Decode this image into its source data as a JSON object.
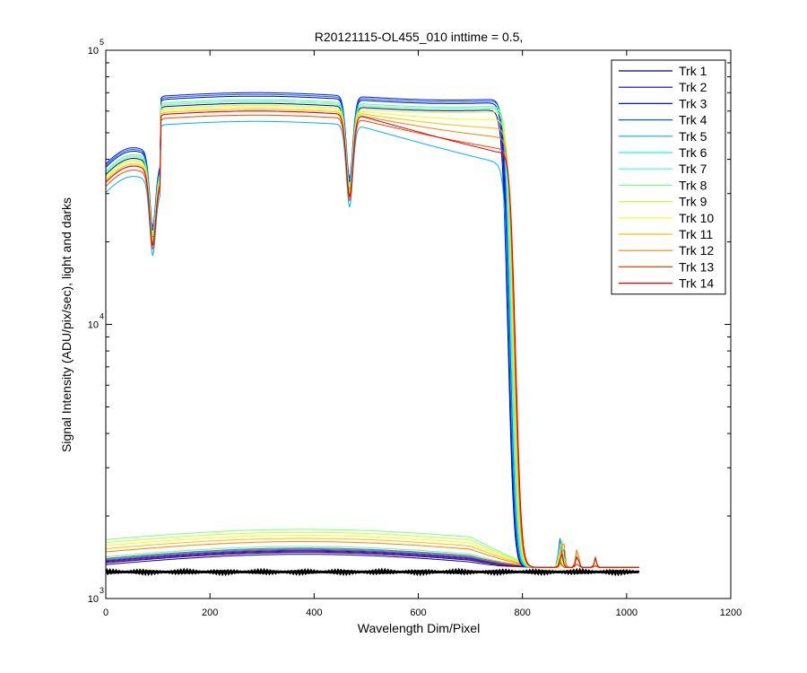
{
  "chart_data": {
    "type": "line",
    "title": "R20121115-OL455_010 inttime = 0.5,",
    "xlabel": "Wavelength Dim/Pixel",
    "ylabel": "Signal Intensity (ADU/pix/sec), light and darks",
    "xlim": [
      0,
      1200
    ],
    "ylim": [
      1000,
      100000
    ],
    "yscale": "log",
    "grid": false,
    "legend_position": "top-right",
    "x_ticks": [
      "0",
      "200",
      "400",
      "600",
      "800",
      "1000",
      "1200"
    ],
    "y_ticks": [
      {
        "base": "10",
        "exp": "3",
        "value": 1000
      },
      {
        "base": "10",
        "exp": "4",
        "value": 10000
      },
      {
        "base": "10",
        "exp": "5",
        "value": 100000
      }
    ],
    "series": [
      {
        "name": "Trk 1",
        "color": "#00008f",
        "level": 64000,
        "dark": 1330
      },
      {
        "name": "Trk 2",
        "color": "#0000bf",
        "level": 68000,
        "dark": 1350
      },
      {
        "name": "Trk 3",
        "color": "#0010ff",
        "level": 70000,
        "dark": 1370
      },
      {
        "name": "Trk 4",
        "color": "#0060ff",
        "level": 69000,
        "dark": 1380
      },
      {
        "name": "Trk 5",
        "color": "#00afff",
        "level": 55000,
        "dark": 1390
      },
      {
        "name": "Trk 6",
        "color": "#10ffef",
        "level": 65000,
        "dark": 1400
      },
      {
        "name": "Trk 7",
        "color": "#40ffbf",
        "level": 66000,
        "dark": 1420
      },
      {
        "name": "Trk 8",
        "color": "#7fff7f",
        "level": 65000,
        "dark": 1640
      },
      {
        "name": "Trk 9",
        "color": "#bfff40",
        "level": 63000,
        "dark": 1600
      },
      {
        "name": "Trk 10",
        "color": "#efff10",
        "level": 62000,
        "dark": 1560
      },
      {
        "name": "Trk 11",
        "color": "#ffbf00",
        "level": 61000,
        "dark": 1520
      },
      {
        "name": "Trk 12",
        "color": "#ff8000",
        "level": 60000,
        "dark": 1480
      },
      {
        "name": "Trk 13",
        "color": "#ff4000",
        "level": 58000,
        "dark": 1400
      },
      {
        "name": "Trk 14",
        "color": "#df0000",
        "level": 60000,
        "dark": 1360
      }
    ],
    "dark_floor": 1250
  }
}
